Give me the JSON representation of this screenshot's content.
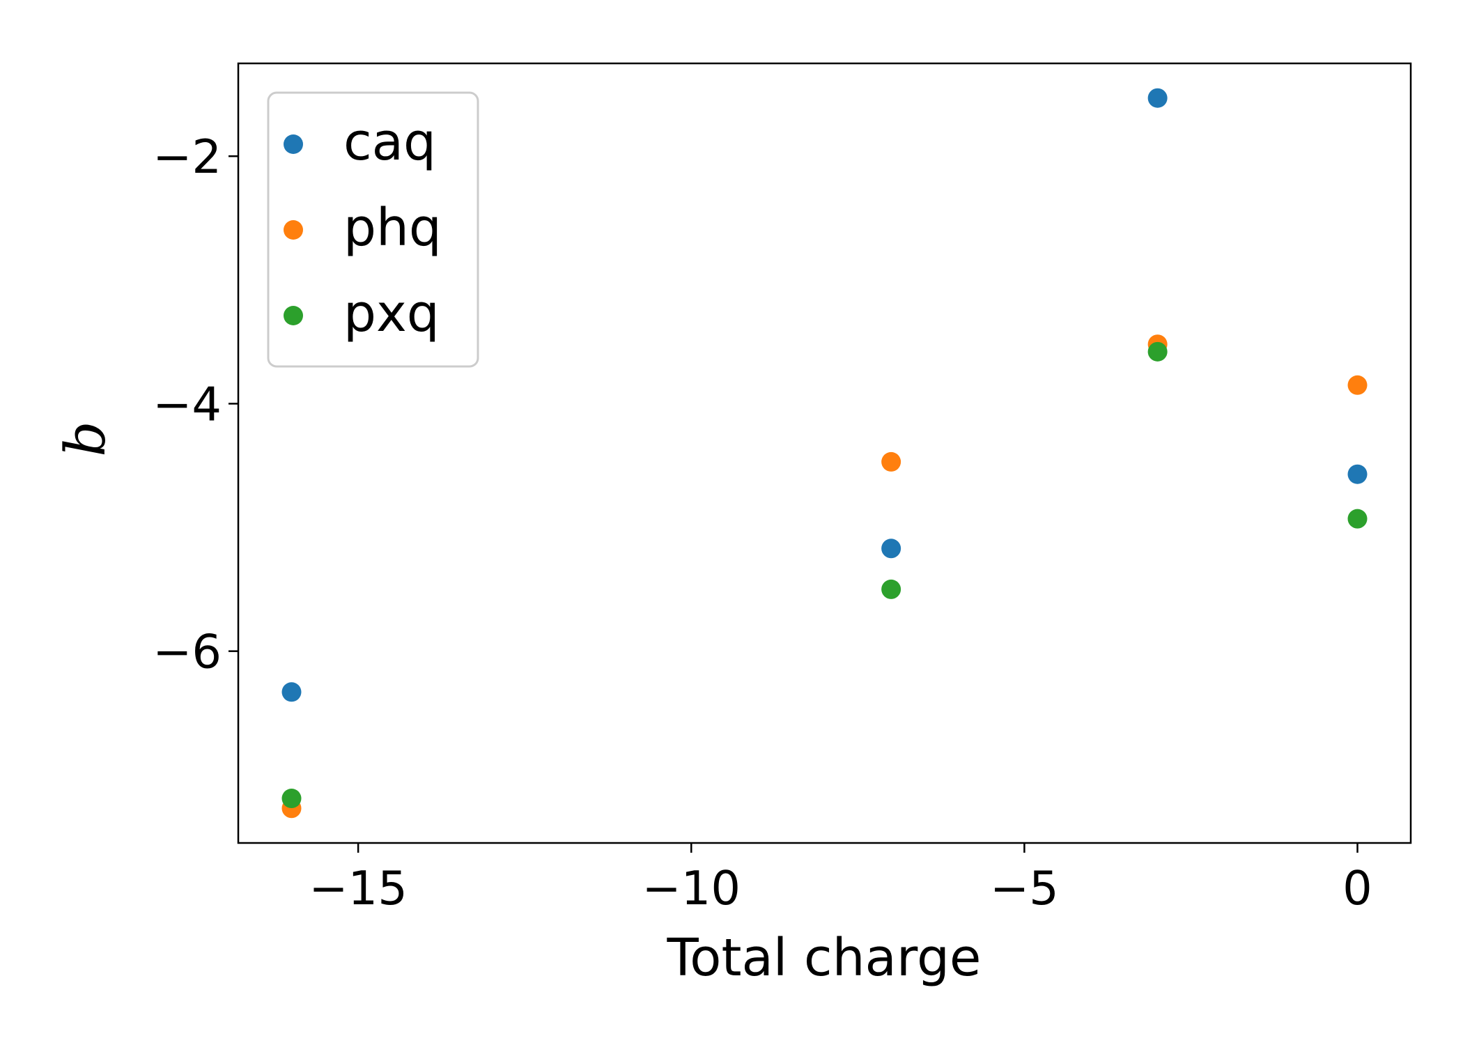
{
  "chart_data": {
    "type": "scatter",
    "title": "",
    "xlabel": "Total charge",
    "ylabel": "b",
    "xlim": [
      -16.8,
      0.8
    ],
    "ylim": [
      -7.55,
      -1.25
    ],
    "xticks": [
      -15,
      -10,
      -5,
      0
    ],
    "xtick_labels": [
      "−15",
      "−10",
      "−5",
      "0"
    ],
    "yticks": [
      -6,
      -4,
      -2
    ],
    "ytick_labels": [
      "−6",
      "−4",
      "−2"
    ],
    "grid": false,
    "legend_position": "upper-left",
    "series": [
      {
        "name": "caq",
        "color": "#1f77b4",
        "points": [
          {
            "x": -16,
            "y": -6.33
          },
          {
            "x": -7,
            "y": -5.17
          },
          {
            "x": -3,
            "y": -1.53
          },
          {
            "x": 0,
            "y": -4.57
          }
        ]
      },
      {
        "name": "phq",
        "color": "#ff7f0e",
        "points": [
          {
            "x": -16,
            "y": -7.27
          },
          {
            "x": -7,
            "y": -4.47
          },
          {
            "x": -3,
            "y": -3.52
          },
          {
            "x": 0,
            "y": -3.85
          }
        ]
      },
      {
        "name": "pxq",
        "color": "#2ca02c",
        "points": [
          {
            "x": -16,
            "y": -7.19
          },
          {
            "x": -7,
            "y": -5.5
          },
          {
            "x": -3,
            "y": -3.58
          },
          {
            "x": 0,
            "y": -4.93
          }
        ]
      }
    ]
  }
}
